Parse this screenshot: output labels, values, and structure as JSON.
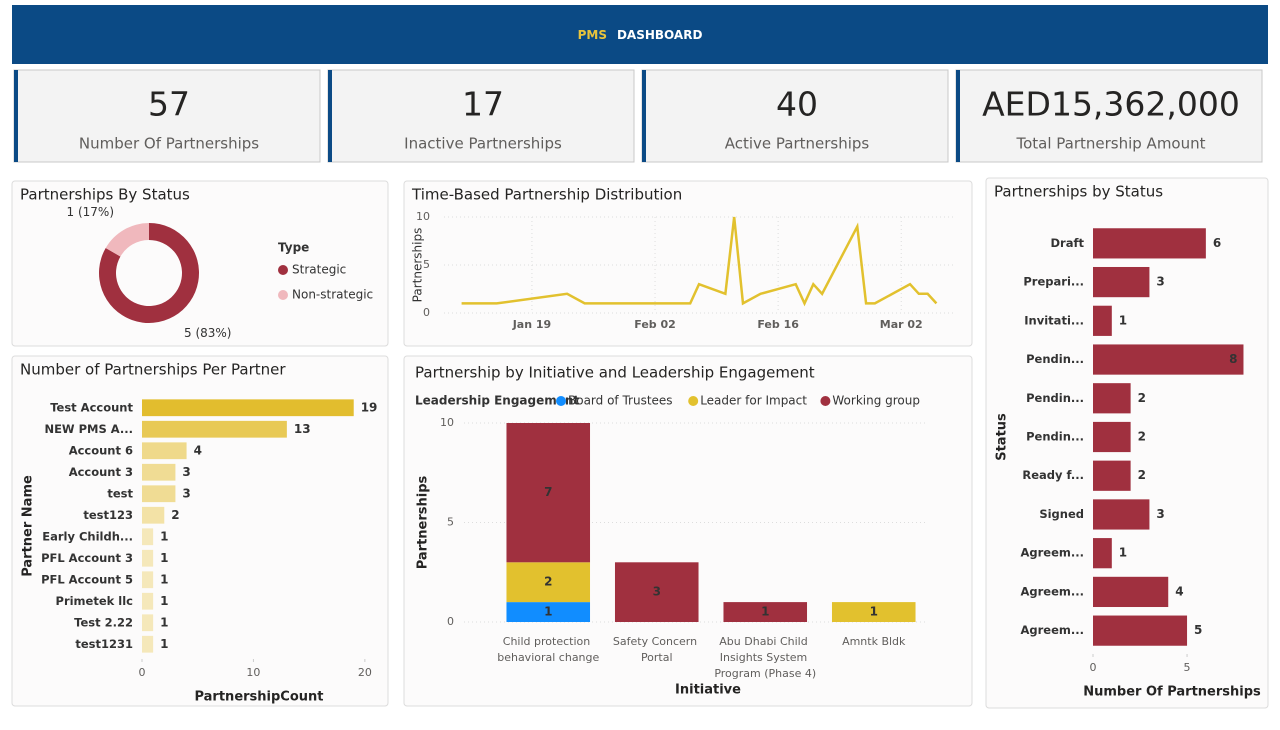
{
  "header": {
    "highlight": "PMS",
    "title": "DASHBOARD"
  },
  "kpis": [
    {
      "value": 57,
      "label": "Number Of Partnerships"
    },
    {
      "value": 17,
      "label": "Inactive Partnerships"
    },
    {
      "value": 40,
      "label": "Active Partnerships"
    },
    {
      "value": "AED15,362,000",
      "label": "Total Partnership Amount"
    }
  ],
  "chart_data": [
    {
      "type": "pie",
      "donut": true,
      "title": "Partnerships By Status",
      "legend_title": "Type",
      "categories": [
        "Strategic",
        "Non-strategic"
      ],
      "values": [
        5,
        1
      ],
      "value_labels": [
        "5 (83%)",
        "1 (17%)"
      ],
      "colors": [
        "#a0303f",
        "#f0b8bd"
      ]
    },
    {
      "type": "line",
      "title": "Time-Based Partnership Distribution",
      "ylabel": "Partnerships",
      "color": "#e2c12e",
      "grid": true,
      "x": [
        "Jan 11",
        "Jan 15",
        "Jan 23",
        "Jan 25",
        "Feb 06",
        "Feb 07",
        "Feb 10",
        "Feb 11",
        "Feb 12",
        "Feb 14",
        "Feb 18",
        "Feb 19",
        "Feb 20",
        "Feb 21",
        "Feb 25",
        "Feb 26",
        "Feb 27",
        "Mar 03",
        "Mar 04",
        "Mar 05",
        "Mar 06"
      ],
      "values": [
        1,
        1,
        2,
        1,
        1,
        3,
        2,
        10,
        1,
        2,
        3,
        1,
        3,
        2,
        9,
        1,
        1,
        3,
        2,
        2,
        1
      ],
      "xlim": [
        "Jan 09",
        "Mar 08"
      ],
      "xticks": [
        "Jan 19",
        "Feb 02",
        "Feb 16",
        "Mar 02"
      ],
      "ylim": [
        0,
        10
      ],
      "yticks": [
        0,
        5,
        10
      ]
    },
    {
      "type": "bar",
      "orientation": "horizontal",
      "title": "Number of Partnerships Per Partner",
      "xlabel": "PartnershipCount",
      "ylabel": "Partner Name",
      "categories": [
        "Test Account",
        "NEW PMS A...",
        "Account 6",
        "Account 3",
        "test",
        "test123",
        "Early Childh...",
        "PFL Account 3",
        "PFL Account 5",
        "Primetek llc",
        "Test 2.22",
        "test1231"
      ],
      "values": [
        19,
        13,
        4,
        3,
        3,
        2,
        1,
        1,
        1,
        1,
        1,
        1
      ],
      "colors": [
        "#e2bd2e",
        "#e8c955",
        "#efd98a",
        "#f0dc94",
        "#f0dc94",
        "#f3e2a6",
        "#f5e8ba",
        "#f5e8ba",
        "#f5e8ba",
        "#f5e8ba",
        "#f5e8ba",
        "#f5e8ba"
      ],
      "xlim": [
        0,
        21
      ],
      "xticks": [
        0,
        10,
        20
      ]
    },
    {
      "type": "bar",
      "stacked": true,
      "title": "Partnership by Initiative and Leadership Engagement",
      "legend_title": "Leadership Engagement",
      "xlabel": "Initiative",
      "ylabel": "Partnerships",
      "grid": true,
      "categories": [
        "Child protection behavioral change",
        "Safety Concern Portal",
        "Abu Dhabi Child Insights System Program (Phase 4)",
        "Amntk Bldk"
      ],
      "series": [
        {
          "name": "Board of Trustees",
          "color": "#118dff",
          "values": [
            1,
            null,
            null,
            null
          ]
        },
        {
          "name": "Leader for Impact",
          "color": "#e2c12e",
          "values": [
            2,
            null,
            null,
            1
          ]
        },
        {
          "name": "Working group",
          "color": "#a0303f",
          "values": [
            7,
            3,
            1,
            null
          ]
        }
      ],
      "ylim": [
        0,
        10
      ],
      "yticks": [
        0,
        5,
        10
      ]
    },
    {
      "type": "bar",
      "orientation": "horizontal",
      "title": "Partnerships by Status",
      "xlabel": "Number Of Partnerships",
      "ylabel": "Status",
      "color": "#a0303f",
      "categories": [
        "Draft",
        "Prepari...",
        "Invitati...",
        "Pendin...",
        "Pendin...",
        "Pendin...",
        "Ready f...",
        "Signed",
        "Agreem...",
        "Agreem...",
        "Agreem..."
      ],
      "values": [
        6,
        3,
        1,
        8,
        2,
        2,
        2,
        3,
        1,
        4,
        5
      ],
      "xlim": [
        0,
        8.4
      ],
      "xticks": [
        0,
        5
      ]
    }
  ]
}
